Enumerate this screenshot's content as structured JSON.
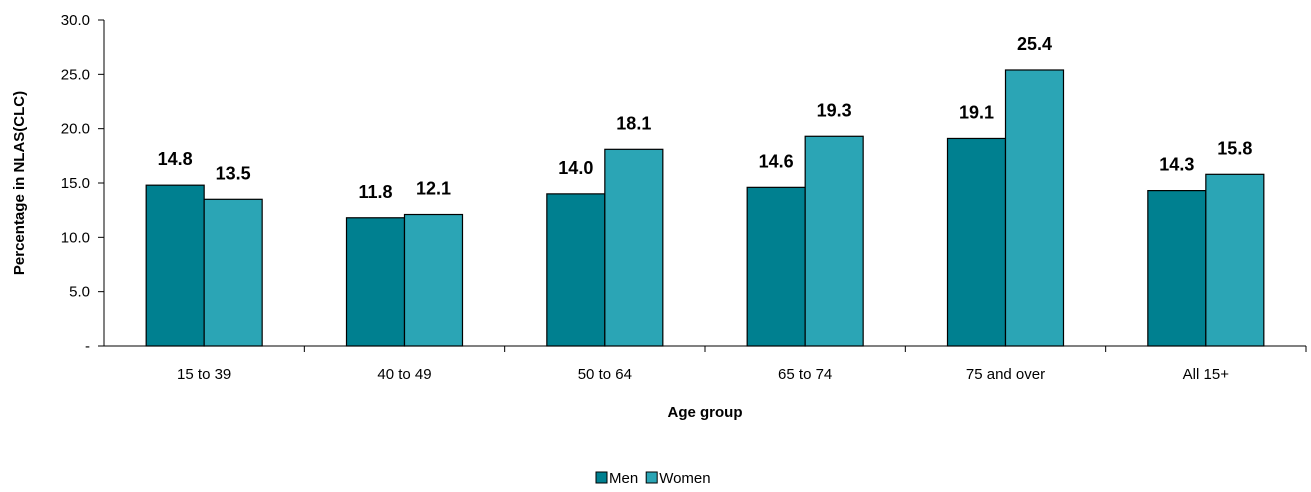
{
  "chart_data": {
    "type": "bar",
    "title": "",
    "xlabel": "Age group",
    "ylabel": "Percentage in NLAS(CLC)",
    "categories": [
      "15 to 39",
      "40 to 49",
      "50 to 64",
      "65 to 74",
      "75 and over",
      "All 15+"
    ],
    "series": [
      {
        "name": "Men",
        "values": [
          14.8,
          11.8,
          14.0,
          14.6,
          19.1,
          14.3
        ],
        "color": "#008090"
      },
      {
        "name": "Women",
        "values": [
          13.5,
          12.1,
          18.1,
          19.3,
          25.4,
          15.8
        ],
        "color": "#2BA5B5"
      }
    ],
    "ylim": [
      0,
      30
    ],
    "yticks": [
      {
        "value": 0,
        "label": "-"
      },
      {
        "value": 5,
        "label": "5.0"
      },
      {
        "value": 10,
        "label": "10.0"
      },
      {
        "value": 15,
        "label": "15.0"
      },
      {
        "value": 20,
        "label": "20.0"
      },
      {
        "value": 25,
        "label": "25.0"
      },
      {
        "value": 30,
        "label": "30.0"
      }
    ],
    "grid": false,
    "legend": "bottom-center"
  }
}
